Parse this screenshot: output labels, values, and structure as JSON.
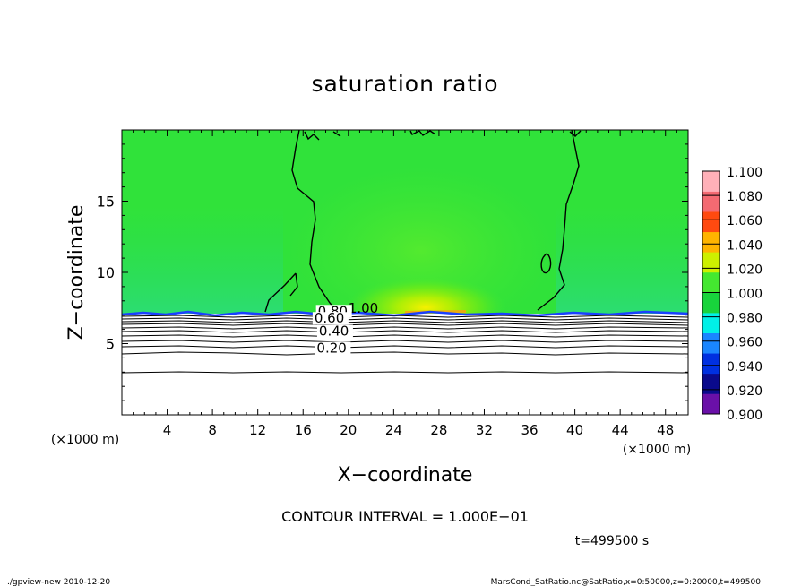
{
  "footer": {
    "left": "./gpview-new   2010-12-20",
    "right": "MarsCond_SatRatio.nc@SatRatio,x=0:50000,z=0:20000,t=499500"
  },
  "chart_data": {
    "type": "heatmap",
    "title": "saturation ratio",
    "xlabel": "X−coordinate",
    "ylabel": "Z−coordinate",
    "x_unit_left": "(×1000 m)",
    "x_unit_right": "(×1000 m)",
    "xlim": [
      0,
      50
    ],
    "ylim": [
      0,
      20
    ],
    "x_ticks": [
      4,
      8,
      12,
      16,
      20,
      24,
      28,
      32,
      36,
      40,
      44,
      48
    ],
    "y_ticks": [
      5,
      10,
      15
    ],
    "contour_interval_text": "CONTOUR INTERVAL = 1.000E−01",
    "time_text": "t=499500 s",
    "colorbar": {
      "levels": [
        0.9,
        0.92,
        0.94,
        0.96,
        0.98,
        1.0,
        1.02,
        1.04,
        1.06,
        1.08,
        1.1
      ],
      "labels": [
        "0.900",
        "0.920",
        "0.940",
        "0.960",
        "0.980",
        "1.000",
        "1.020",
        "1.040",
        "1.060",
        "1.080",
        "1.100"
      ],
      "colors": [
        "#6a10a8",
        "#0a0a8c",
        "#0030e0",
        "#1a86ff",
        "#00f0e8",
        "#18d43c",
        "#44e830",
        "#cdf000",
        "#ffb400",
        "#ff4a10",
        "#f46a72",
        "#ffb0b8"
      ]
    },
    "field": {
      "description_values": "domain above z~7 km near 1.0 (green), maximum ~1.04 near x=28, z=7.3; below z~7 km field < 0.9 (white)",
      "background_value": 1.005,
      "max_value": 1.04,
      "boundary_z": 7.0
    },
    "contour_labels": [
      {
        "text": "1.00",
        "x": 20.0,
        "z": 7.1
      },
      {
        "text": "0.80",
        "x": 17.3,
        "z": 6.9
      },
      {
        "text": "0.60",
        "x": 17.0,
        "z": 6.4
      },
      {
        "text": "0.40",
        "x": 17.4,
        "z": 5.5
      },
      {
        "text": "0.20",
        "x": 17.2,
        "z": 4.3
      }
    ]
  }
}
